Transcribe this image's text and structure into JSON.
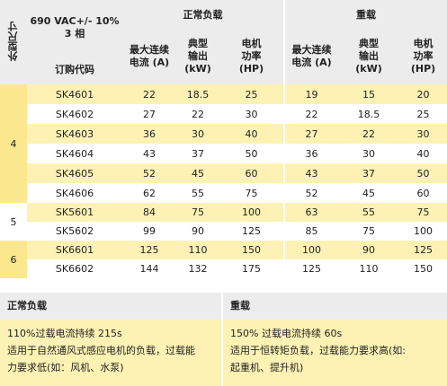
{
  "header": {
    "size_label": "外型尺寸",
    "voltage_line1": "690 VAC+/- 10%",
    "voltage_line2": "3 相",
    "order_code_label": "订购代码",
    "normal_duty": "正常负载",
    "heavy_duty": "重载",
    "col_current": [
      "最大连续",
      "电流 (A)"
    ],
    "col_kw": [
      "典型",
      "输出",
      "(kW)"
    ],
    "col_hp": [
      "电机",
      "功率",
      "(HP)"
    ]
  },
  "groups": [
    {
      "size": "4",
      "rows": [
        {
          "code": "SK4601",
          "n_a": "22",
          "n_kw": "18.5",
          "n_hp": "25",
          "h_a": "19",
          "h_kw": "15",
          "h_hp": "20"
        },
        {
          "code": "SK4602",
          "n_a": "27",
          "n_kw": "22",
          "n_hp": "30",
          "h_a": "22",
          "h_kw": "18.5",
          "h_hp": "25"
        },
        {
          "code": "SK4603",
          "n_a": "36",
          "n_kw": "30",
          "n_hp": "40",
          "h_a": "27",
          "h_kw": "22",
          "h_hp": "30"
        },
        {
          "code": "SK4604",
          "n_a": "43",
          "n_kw": "37",
          "n_hp": "50",
          "h_a": "36",
          "h_kw": "30",
          "h_hp": "40"
        },
        {
          "code": "SK4605",
          "n_a": "52",
          "n_kw": "45",
          "n_hp": "60",
          "h_a": "43",
          "h_kw": "37",
          "h_hp": "50"
        },
        {
          "code": "SK4606",
          "n_a": "62",
          "n_kw": "55",
          "n_hp": "75",
          "h_a": "52",
          "h_kw": "45",
          "h_hp": "60"
        }
      ]
    },
    {
      "size": "5",
      "rows": [
        {
          "code": "SK5601",
          "n_a": "84",
          "n_kw": "75",
          "n_hp": "100",
          "h_a": "63",
          "h_kw": "55",
          "h_hp": "75"
        },
        {
          "code": "SK5602",
          "n_a": "99",
          "n_kw": "90",
          "n_hp": "125",
          "h_a": "85",
          "h_kw": "75",
          "h_hp": "100"
        }
      ]
    },
    {
      "size": "6",
      "rows": [
        {
          "code": "SK6601",
          "n_a": "125",
          "n_kw": "110",
          "n_hp": "150",
          "h_a": "100",
          "h_kw": "90",
          "h_hp": "125"
        },
        {
          "code": "SK6602",
          "n_a": "144",
          "n_kw": "132",
          "n_hp": "175",
          "h_a": "125",
          "h_kw": "110",
          "h_hp": "150"
        }
      ]
    }
  ],
  "notes": {
    "normal_title": "正常负载",
    "normal_line1": "110%过载电流持续 215s",
    "normal_line2": "适用于自然通风式感应电机的负载，过载能",
    "normal_line3": "力要求低(如：风机、水泵)",
    "heavy_title": "重载",
    "heavy_line1": "150% 过载电流持续 60s",
    "heavy_line2": "适用于恒转矩负载，过载能力要求高(如:",
    "heavy_line3": "起重机、提升机)"
  }
}
